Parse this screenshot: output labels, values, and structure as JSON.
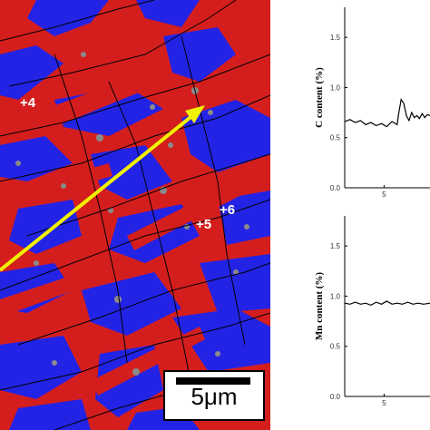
{
  "micrograph": {
    "labels": [
      "+4",
      "+5",
      "+6"
    ],
    "scale_bar": "5μm",
    "colors": {
      "red_phase": "#d41e1e",
      "blue_phase": "#2323e6",
      "line_scan_arrow": "#f0f000"
    }
  },
  "chart_data": [
    {
      "type": "line",
      "title": "",
      "xlabel": "",
      "ylabel": "C content (%)",
      "xlim": [
        2,
        8.5
      ],
      "ylim": [
        0,
        1.8
      ],
      "xticks": [
        5
      ],
      "yticks": [
        "0.0",
        "0.5",
        "1.0",
        "1.5"
      ],
      "x": [
        2.0,
        2.4,
        2.8,
        3.2,
        3.6,
        4.0,
        4.4,
        4.8,
        5.2,
        5.6,
        6.0,
        6.1,
        6.3,
        6.5,
        6.7,
        6.9,
        7.1,
        7.3,
        7.5,
        7.7,
        7.9,
        8.1,
        8.3,
        8.5
      ],
      "series": [
        {
          "values": [
            0.66,
            0.68,
            0.65,
            0.67,
            0.63,
            0.65,
            0.62,
            0.64,
            0.61,
            0.66,
            0.63,
            0.73,
            0.88,
            0.84,
            0.72,
            0.67,
            0.75,
            0.7,
            0.72,
            0.69,
            0.74,
            0.7,
            0.73,
            0.72
          ]
        }
      ]
    },
    {
      "type": "line",
      "title": "",
      "xlabel": "",
      "ylabel": "Mn content (%)",
      "xlim": [
        2,
        8.5
      ],
      "ylim": [
        0,
        1.8
      ],
      "xticks": [
        5
      ],
      "yticks": [
        "0.0",
        "0.5",
        "1.0",
        "1.5"
      ],
      "x": [
        2.0,
        2.4,
        2.8,
        3.2,
        3.6,
        4.0,
        4.4,
        4.8,
        5.2,
        5.6,
        6.0,
        6.4,
        6.8,
        7.2,
        7.6,
        8.0,
        8.5
      ],
      "series": [
        {
          "values": [
            0.93,
            0.92,
            0.94,
            0.92,
            0.93,
            0.91,
            0.94,
            0.92,
            0.95,
            0.92,
            0.93,
            0.92,
            0.94,
            0.92,
            0.93,
            0.92,
            0.93
          ]
        }
      ]
    }
  ]
}
